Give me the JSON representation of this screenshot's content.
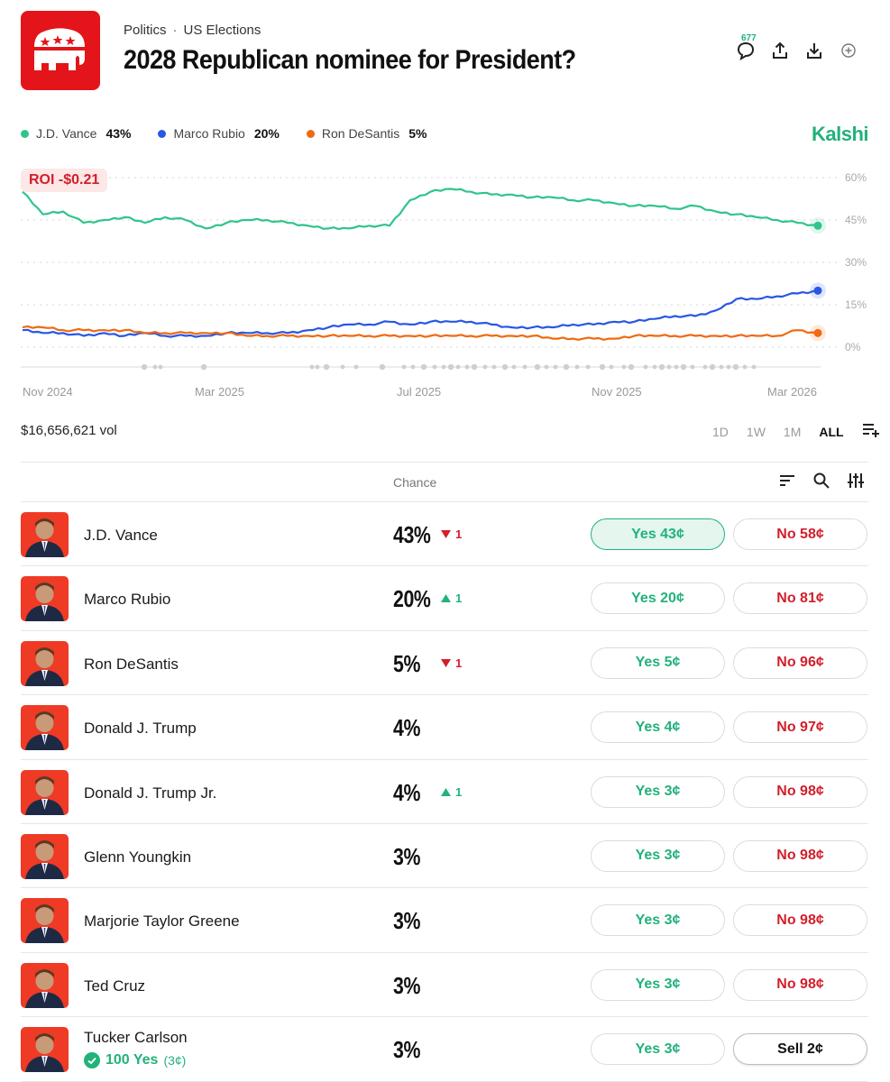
{
  "colors": {
    "accent": "#22b27a",
    "red": "#d21f2a",
    "vance": "#2ec58a",
    "rubio": "#2757e6",
    "desantis": "#ef6a12",
    "logo_bg": "#e3151a"
  },
  "header": {
    "breadcrumb": [
      "Politics",
      "US Elections"
    ],
    "breadcrumb_sep": "·",
    "title": "2028 Republican nominee for President?",
    "comment_count": "677"
  },
  "brand": "Kalshi",
  "legend": [
    {
      "name": "J.D. Vance",
      "pct": "43%",
      "color": "#2ec58a"
    },
    {
      "name": "Marco Rubio",
      "pct": "20%",
      "color": "#2757e6"
    },
    {
      "name": "Ron DeSantis",
      "pct": "5%",
      "color": "#ef6a12"
    }
  ],
  "roi": "ROI -$0.21",
  "chart_data": {
    "type": "line",
    "x_ticks": [
      "Nov 2024",
      "Mar 2025",
      "Jul 2025",
      "Nov 2025",
      "Mar 2026"
    ],
    "y_ticks": [
      "60%",
      "45%",
      "30%",
      "15%",
      "0%"
    ],
    "ylim": [
      0,
      60
    ],
    "series": [
      {
        "name": "J.D. Vance",
        "color": "#2ec58a",
        "values": [
          55,
          47,
          48,
          44,
          45,
          46,
          44,
          46,
          45,
          42,
          44,
          45,
          45,
          44,
          43,
          42,
          42,
          43,
          43,
          52,
          55,
          56,
          55,
          54,
          54,
          53,
          53,
          52,
          52,
          51,
          50,
          50,
          49,
          50,
          48,
          47,
          46,
          45,
          44,
          43
        ]
      },
      {
        "name": "Marco Rubio",
        "color": "#2757e6",
        "values": [
          6,
          5,
          5,
          4,
          5,
          4,
          5,
          4,
          4,
          4,
          5,
          5,
          5,
          5,
          6,
          7,
          8,
          8,
          9,
          8,
          9,
          9,
          9,
          8,
          7,
          7,
          7,
          8,
          8,
          9,
          9,
          10,
          11,
          11,
          13,
          17,
          17,
          18,
          19,
          20
        ]
      },
      {
        "name": "Ron DeSantis",
        "color": "#ef6a12",
        "values": [
          7,
          7,
          6,
          6,
          6,
          6,
          5,
          5,
          5,
          5,
          5,
          4,
          4,
          4,
          4,
          4,
          4,
          4,
          4,
          4,
          4,
          4,
          4,
          4,
          4,
          4,
          3,
          3,
          3,
          3,
          4,
          4,
          4,
          4,
          4,
          4,
          4,
          4,
          6,
          5
        ]
      }
    ]
  },
  "volume": "$16,656,621 vol",
  "ranges": [
    "1D",
    "1W",
    "1M",
    "ALL"
  ],
  "table": {
    "chance_header": "Chance",
    "rows": [
      {
        "name": "J.D. Vance",
        "chance": "43%",
        "delta": "1",
        "dir": "down",
        "yes": "Yes 43¢",
        "no": "No 58¢",
        "selected": true,
        "sell": false
      },
      {
        "name": "Marco Rubio",
        "chance": "20%",
        "delta": "1",
        "dir": "up",
        "yes": "Yes 20¢",
        "no": "No 81¢",
        "selected": false,
        "sell": false
      },
      {
        "name": "Ron DeSantis",
        "chance": "5%",
        "delta": "1",
        "dir": "down",
        "yes": "Yes 5¢",
        "no": "No 96¢",
        "selected": false,
        "sell": false
      },
      {
        "name": "Donald J. Trump",
        "chance": "4%",
        "delta": "",
        "dir": "",
        "yes": "Yes 4¢",
        "no": "No 97¢",
        "selected": false,
        "sell": false
      },
      {
        "name": "Donald J. Trump Jr.",
        "chance": "4%",
        "delta": "1",
        "dir": "up",
        "yes": "Yes 3¢",
        "no": "No 98¢",
        "selected": false,
        "sell": false
      },
      {
        "name": "Glenn Youngkin",
        "chance": "3%",
        "delta": "",
        "dir": "",
        "yes": "Yes 3¢",
        "no": "No 98¢",
        "selected": false,
        "sell": false
      },
      {
        "name": "Marjorie Taylor Greene",
        "chance": "3%",
        "delta": "",
        "dir": "",
        "yes": "Yes 3¢",
        "no": "No 98¢",
        "selected": false,
        "sell": false
      },
      {
        "name": "Ted Cruz",
        "chance": "3%",
        "delta": "",
        "dir": "",
        "yes": "Yes 3¢",
        "no": "No 98¢",
        "selected": false,
        "sell": false
      },
      {
        "name": "Tucker Carlson",
        "chance": "3%",
        "delta": "",
        "dir": "",
        "yes": "Yes 3¢",
        "no": "Sell 2¢",
        "selected": false,
        "sell": true,
        "holding": "100 Yes",
        "holding_sub": "(3¢)"
      }
    ]
  }
}
